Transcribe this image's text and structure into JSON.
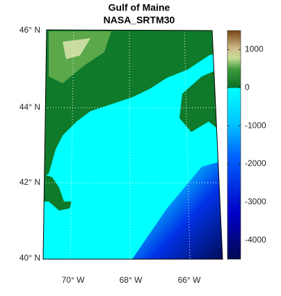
{
  "title": [
    "Gulf of Maine",
    "NASA_SRTM30"
  ],
  "lat_labels": [
    "46° N",
    "44° N",
    "42° N",
    "40° N"
  ],
  "lon_labels": [
    "70° W",
    "68° W",
    "66° W"
  ],
  "colorbar": {
    "lim": [
      -4500,
      1500
    ],
    "ticks": [
      1000,
      0,
      -1000,
      -2000,
      -3000,
      -4000
    ]
  }
}
